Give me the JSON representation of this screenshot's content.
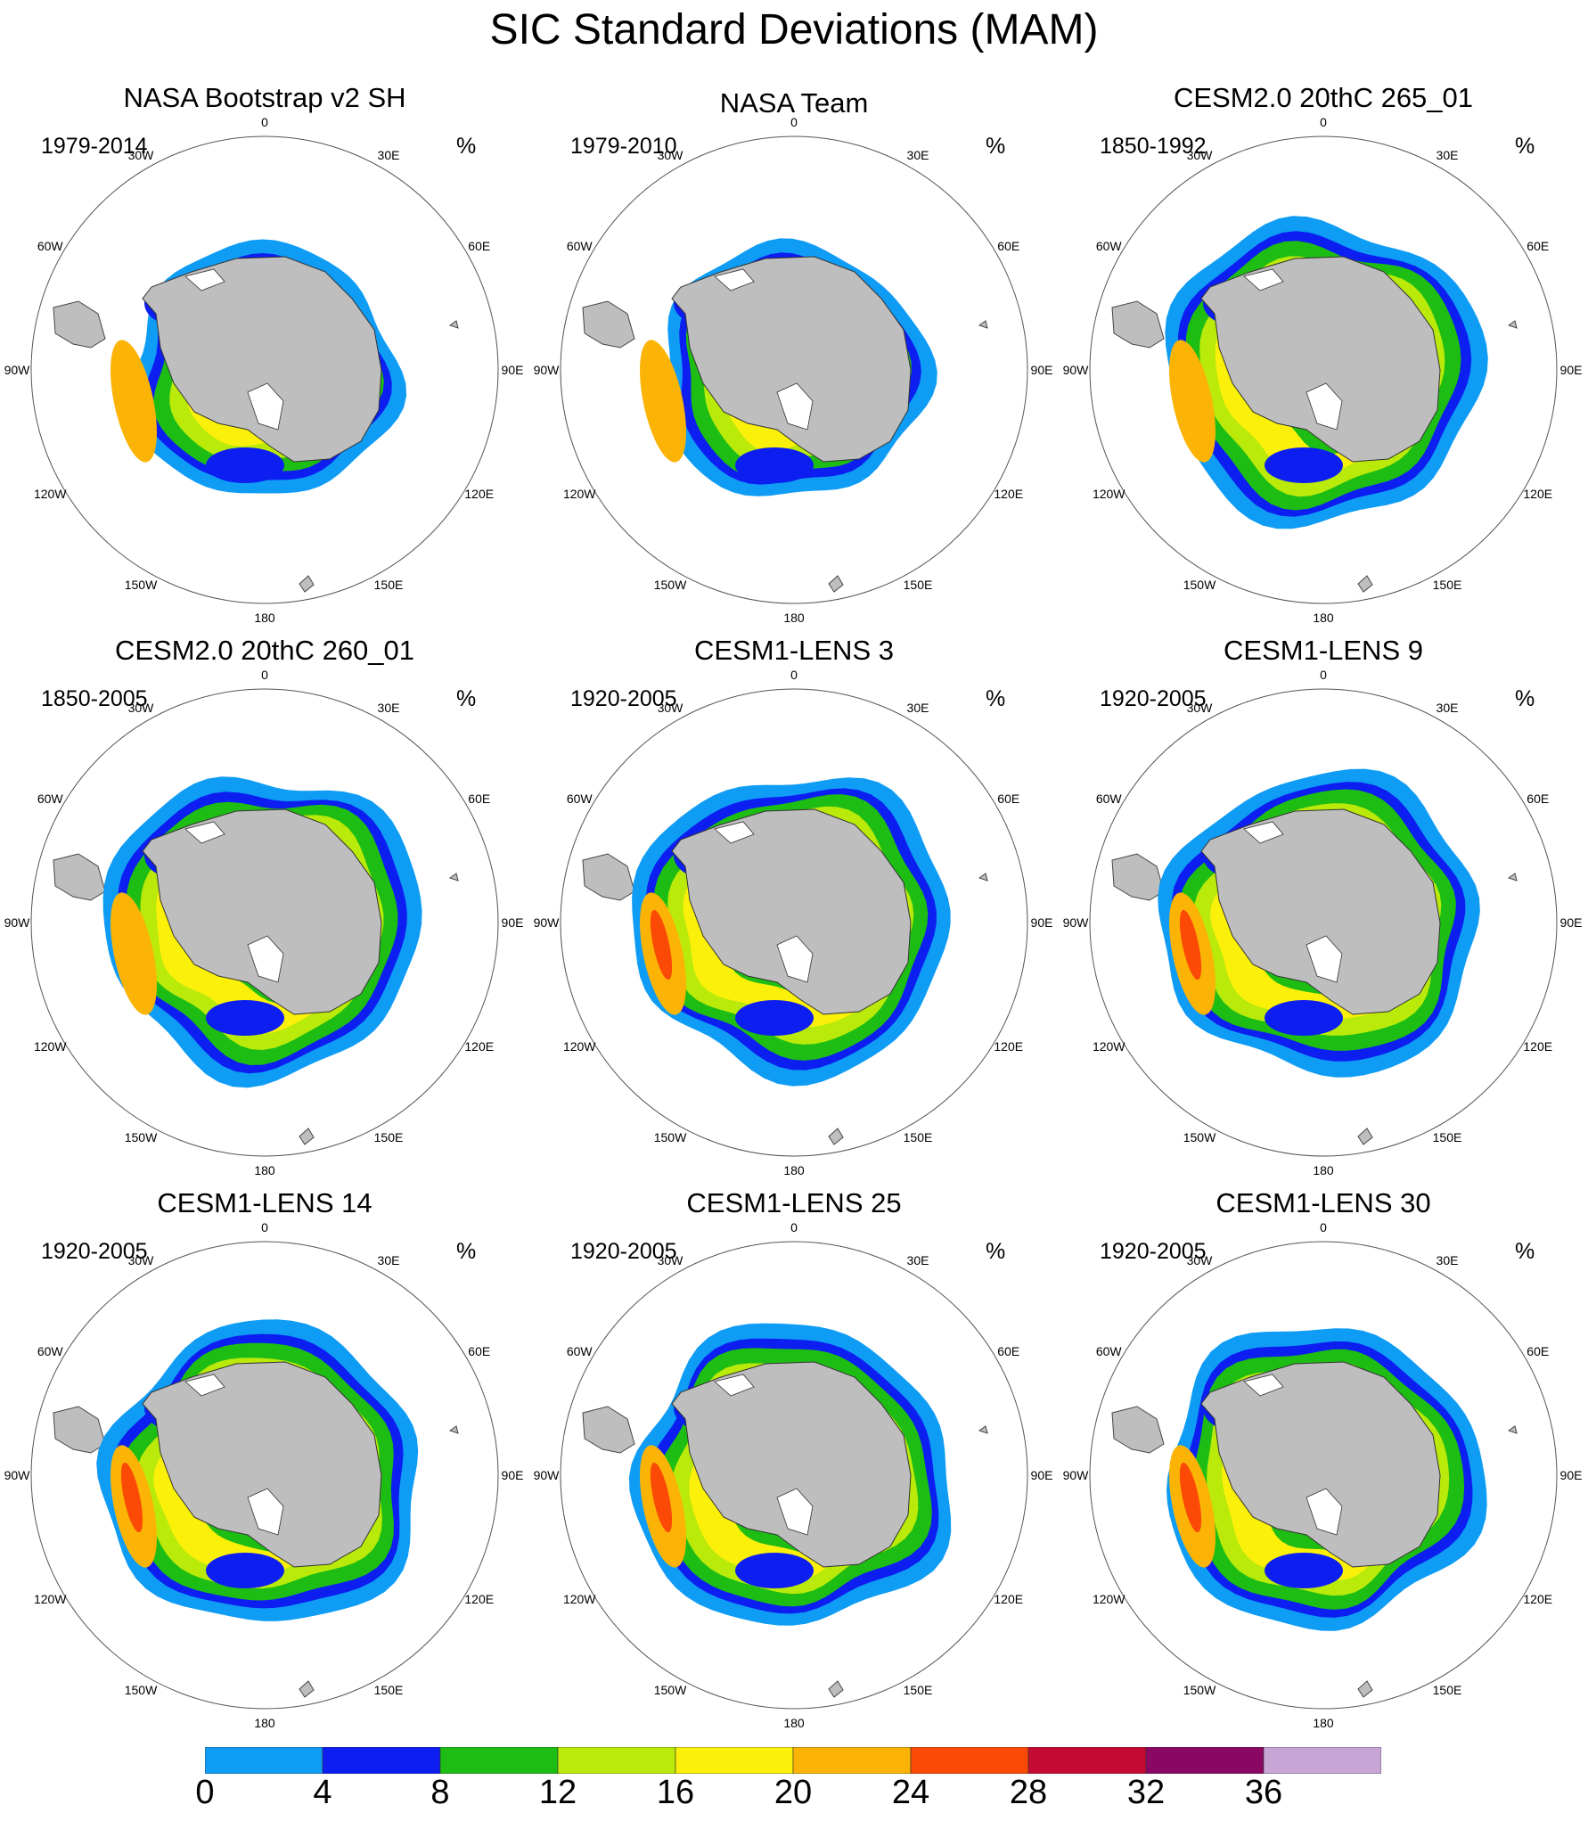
{
  "title": "SIC Standard Deviations (MAM)",
  "panels": [
    {
      "title": "NASA Bootstrap v2 SH",
      "years": "1979-2014",
      "unit": "%"
    },
    {
      "title": "NASA Team",
      "years": "1979-2010",
      "unit": "%"
    },
    {
      "title": "CESM2.0 20thC 265_01",
      "years": "1850-1992",
      "unit": "%"
    },
    {
      "title": "CESM2.0 20thC 260_01",
      "years": "1850-2005",
      "unit": "%"
    },
    {
      "title": "CESM1-LENS 3",
      "years": "1920-2005",
      "unit": "%"
    },
    {
      "title": "CESM1-LENS 9",
      "years": "1920-2005",
      "unit": "%"
    },
    {
      "title": "CESM1-LENS 14",
      "years": "1920-2005",
      "unit": "%"
    },
    {
      "title": "CESM1-LENS 25",
      "years": "1920-2005",
      "unit": "%"
    },
    {
      "title": "CESM1-LENS 30",
      "years": "1920-2005",
      "unit": "%"
    }
  ],
  "longitude_labels": [
    "0",
    "30E",
    "60E",
    "90E",
    "120E",
    "150E",
    "180",
    "150W",
    "120W",
    "90W",
    "60W",
    "30W"
  ],
  "colorbar": {
    "ticks": [
      "0",
      "4",
      "8",
      "12",
      "16",
      "20",
      "24",
      "28",
      "32",
      "36"
    ],
    "colors": [
      "#0f9cf5",
      "#0d1ef0",
      "#1ebd14",
      "#b9ea0a",
      "#fbf00a",
      "#fbb406",
      "#fb4a06",
      "#c40a32",
      "#8a0764",
      "#c7a6d5"
    ]
  },
  "colors": {
    "land": "#bebebe",
    "ice_shelf": "#ffffff"
  }
}
